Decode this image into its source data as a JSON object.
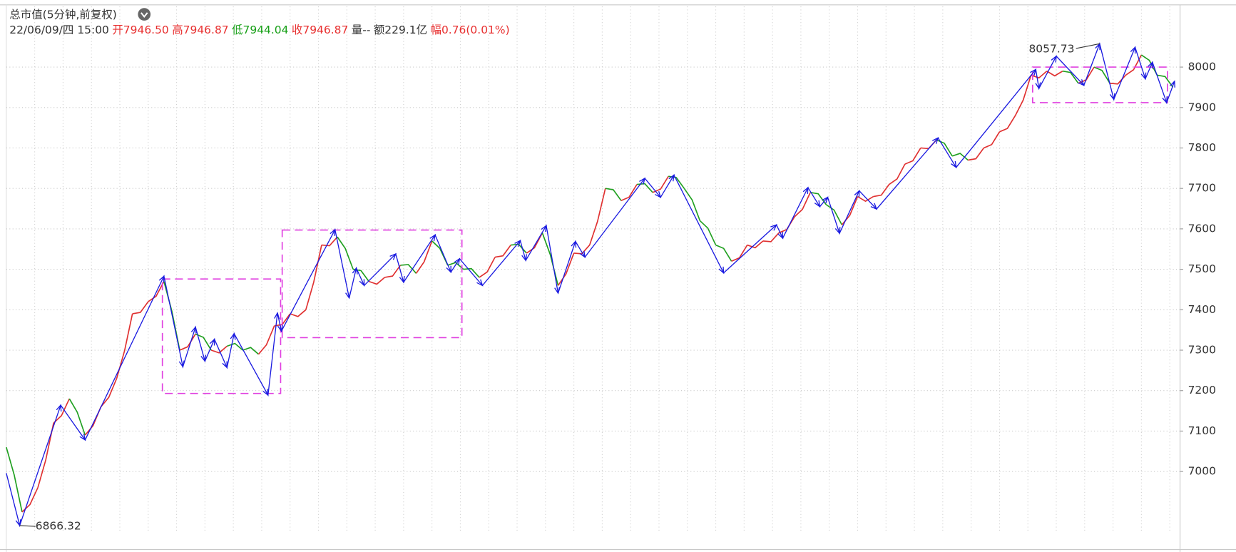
{
  "chart_data": {
    "type": "zigzag",
    "title": "总市值(5分钟,前复权)",
    "info": [
      {
        "text": "22/06/09/四 15:00",
        "color": "#333333"
      },
      {
        "text": "开7946.50",
        "color": "#e83030"
      },
      {
        "text": "高7946.87",
        "color": "#e83030"
      },
      {
        "text": "低7944.04",
        "color": "#18a018"
      },
      {
        "text": "收7946.87",
        "color": "#e83030"
      },
      {
        "text": "量--",
        "color": "#333333"
      },
      {
        "text": "额229.1亿",
        "color": "#333333"
      },
      {
        "text": "幅0.76(0.01%)",
        "color": "#e83030"
      }
    ],
    "xlim": [
      8,
      1497
    ],
    "ylim": [
      6850,
      8150
    ],
    "yticks": [
      7000,
      7100,
      7200,
      7300,
      7400,
      7500,
      7600,
      7700,
      7800,
      7900,
      8000
    ],
    "grid": true,
    "price": {
      "rise_color": "#e03030",
      "fall_color": "#20a020",
      "x": [
        8,
        28,
        48,
        68,
        88,
        108,
        128,
        148,
        168,
        188,
        208,
        228,
        248,
        268,
        288,
        308,
        328,
        348,
        368,
        388,
        408,
        428,
        448,
        468,
        488,
        508,
        528,
        548,
        568,
        588,
        608,
        628,
        648,
        668,
        688,
        708,
        728,
        748,
        768,
        788,
        808,
        828,
        848,
        868,
        888,
        908,
        928,
        948,
        968,
        988,
        1008,
        1028,
        1048,
        1068,
        1088,
        1108,
        1128,
        1148,
        1168,
        1188,
        1208,
        1228,
        1248,
        1268,
        1288,
        1308,
        1328,
        1348,
        1368,
        1388,
        1408,
        1428,
        1448,
        1468,
        1488
      ],
      "values": [
        7060,
        6900,
        6960,
        7120,
        7180,
        7090,
        7160,
        7230,
        7390,
        7420,
        7470,
        7300,
        7340,
        7300,
        7310,
        7300,
        7290,
        7360,
        7390,
        7400,
        7560,
        7580,
        7500,
        7470,
        7480,
        7510,
        7490,
        7570,
        7510,
        7500,
        7480,
        7530,
        7560,
        7540,
        7590,
        7460,
        7540,
        7560,
        7700,
        7670,
        7710,
        7690,
        7730,
        7700,
        7620,
        7560,
        7520,
        7560,
        7570,
        7590,
        7630,
        7690,
        7660,
        7610,
        7680,
        7680,
        7710,
        7760,
        7800,
        7820,
        7780,
        7770,
        7800,
        7840,
        7880,
        7980,
        7990,
        7990,
        7960,
        8000,
        7960,
        7980,
        8030,
        7980,
        7950
      ]
    },
    "zigzag": {
      "color": "#1a1ae0",
      "x": [
        8,
        25,
        77,
        108,
        208,
        232,
        248,
        260,
        272,
        288,
        297,
        340,
        352,
        357,
        425,
        443,
        452,
        462,
        502,
        512,
        552,
        572,
        583,
        612,
        660,
        667,
        693,
        708,
        730,
        742,
        818,
        838,
        855,
        918,
        985,
        993,
        1025,
        1040,
        1050,
        1065,
        1090,
        1112,
        1190,
        1213,
        1314,
        1318,
        1340,
        1375,
        1395,
        1413,
        1440,
        1453,
        1462,
        1480,
        1490
      ],
      "values": [
        6996,
        6866.32,
        7164,
        7078,
        7483,
        7259,
        7357,
        7273,
        7327,
        7257,
        7341,
        7189,
        7392,
        7347,
        7598,
        7429,
        7503,
        7460,
        7538,
        7468,
        7585,
        7493,
        7526,
        7460,
        7571,
        7522,
        7608,
        7441,
        7569,
        7530,
        7725,
        7678,
        7733,
        7491,
        7610,
        7577,
        7702,
        7655,
        7678,
        7589,
        7694,
        7649,
        7825,
        7752,
        7994,
        7947,
        8027,
        7955,
        8057.73,
        7920,
        8049,
        7971,
        8012,
        7912,
        7965
      ]
    },
    "boxes": {
      "color": "#e040e0",
      "x": [
        [
          206,
          356
        ],
        [
          358,
          586
        ],
        [
          1310,
          1481
        ]
      ],
      "y": [
        [
          7193,
          7476
        ],
        [
          7331,
          7597
        ],
        [
          7912,
          8000
        ]
      ]
    },
    "annotations": [
      {
        "x": 1395,
        "value": 8057.73
      },
      {
        "x": 25,
        "value": 6866.32
      }
    ]
  }
}
